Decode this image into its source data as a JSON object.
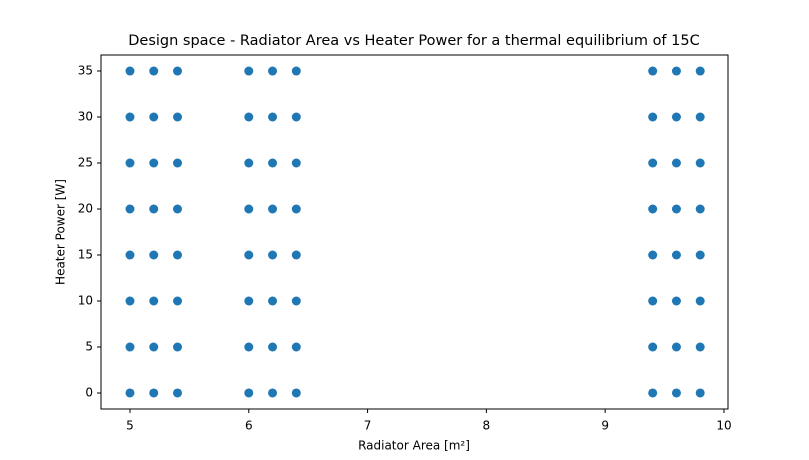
{
  "chart_data": {
    "type": "scatter",
    "title": "Design space - Radiator Area vs Heater Power for a thermal equilibrium of 15C",
    "x_label": "Radiator Area [m²]",
    "y_label": "Heater Power [W]",
    "x": [
      5,
      5,
      5,
      5,
      5,
      5,
      5,
      5,
      5.2,
      5.2,
      5.2,
      5.2,
      5.2,
      5.2,
      5.2,
      5.2,
      5.4,
      5.4,
      5.4,
      5.4,
      5.4,
      5.4,
      5.4,
      5.4,
      6,
      6,
      6,
      6,
      6,
      6,
      6,
      6,
      6.2,
      6.2,
      6.2,
      6.2,
      6.2,
      6.2,
      6.2,
      6.2,
      6.4,
      6.4,
      6.4,
      6.4,
      6.4,
      6.4,
      6.4,
      6.4,
      9.4,
      9.4,
      9.4,
      9.4,
      9.4,
      9.4,
      9.4,
      9.4,
      9.6,
      9.6,
      9.6,
      9.6,
      9.6,
      9.6,
      9.6,
      9.6,
      9.8,
      9.8,
      9.8,
      9.8,
      9.8,
      9.8,
      9.8,
      9.8
    ],
    "values": [
      0,
      5,
      10,
      15,
      20,
      25,
      30,
      35,
      0,
      5,
      10,
      15,
      20,
      25,
      30,
      35,
      0,
      5,
      10,
      15,
      20,
      25,
      30,
      35,
      0,
      5,
      10,
      15,
      20,
      25,
      30,
      35,
      0,
      5,
      10,
      15,
      20,
      25,
      30,
      35,
      0,
      5,
      10,
      15,
      20,
      25,
      30,
      35,
      0,
      5,
      10,
      15,
      20,
      25,
      30,
      35,
      0,
      5,
      10,
      15,
      20,
      25,
      30,
      35,
      0,
      5,
      10,
      15,
      20,
      25,
      30,
      35
    ],
    "color": "#1f77b4",
    "xlim": [
      4.756,
      10.034
    ],
    "xticks": [
      5,
      6,
      7,
      8,
      9,
      10
    ],
    "ylim": [
      -1.74,
      36.74
    ],
    "yticks": [
      0,
      5,
      10,
      15,
      20,
      25,
      30,
      35
    ],
    "grid": false
  }
}
